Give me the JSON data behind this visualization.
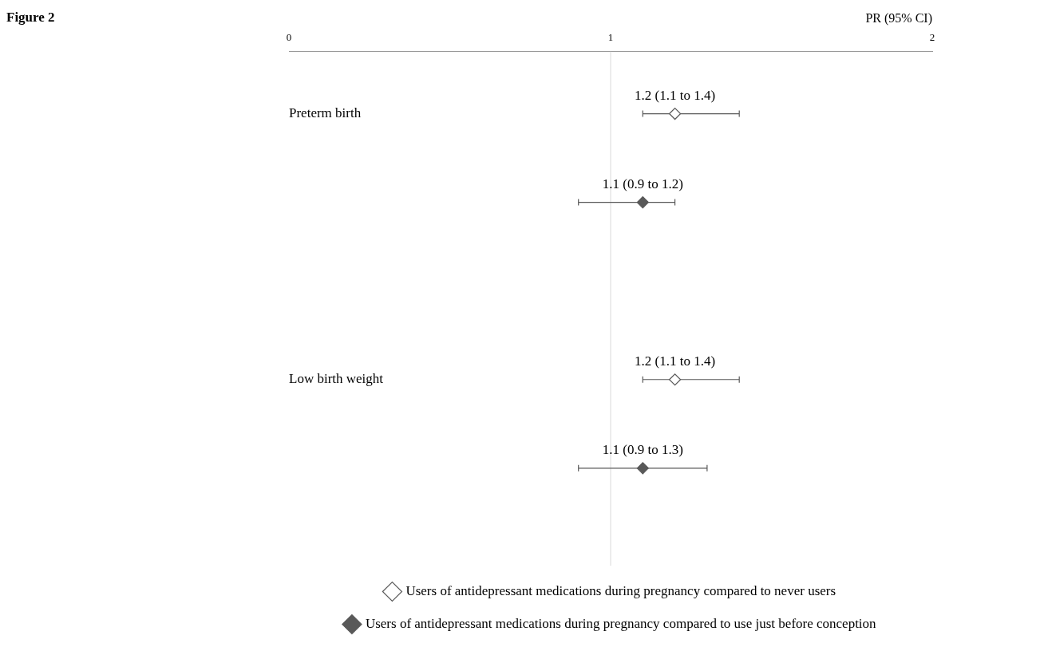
{
  "chart_data": {
    "type": "scatter",
    "title": "Figure 2",
    "orientation": "horizontal",
    "xlabel": "PR (95% CI)",
    "categories": [
      "Preterm birth",
      "Low birth weight"
    ],
    "xlim": [
      0,
      2
    ],
    "xticks": [
      0,
      1,
      2
    ],
    "grid": false,
    "marker": "diamond",
    "legend": "bottom",
    "ref_lines": [
      {
        "axis": "x",
        "value": 1,
        "color": "#d9d9d9"
      }
    ],
    "series": [
      {
        "name": "Users of antidepressant medications during pregnancy compared to never users",
        "color": "#ffffff",
        "values": [
          1.2,
          1.2
        ],
        "errors": [
          [
            1.1,
            1.4
          ],
          [
            1.1,
            1.4
          ]
        ],
        "value_labels": [
          "1.2 (1.1 to 1.4)",
          "1.2 (1.1 to 1.4)"
        ]
      },
      {
        "name": "Users of antidepressant medications during pregnancy compared to use just before conception",
        "color": "#595959",
        "values": [
          1.1,
          1.1
        ],
        "errors": [
          [
            0.9,
            1.2
          ],
          [
            0.9,
            1.3
          ]
        ],
        "value_labels": [
          "1.1 (0.9 to 1.2)",
          "1.1 (0.9 to 1.3)"
        ]
      }
    ]
  }
}
